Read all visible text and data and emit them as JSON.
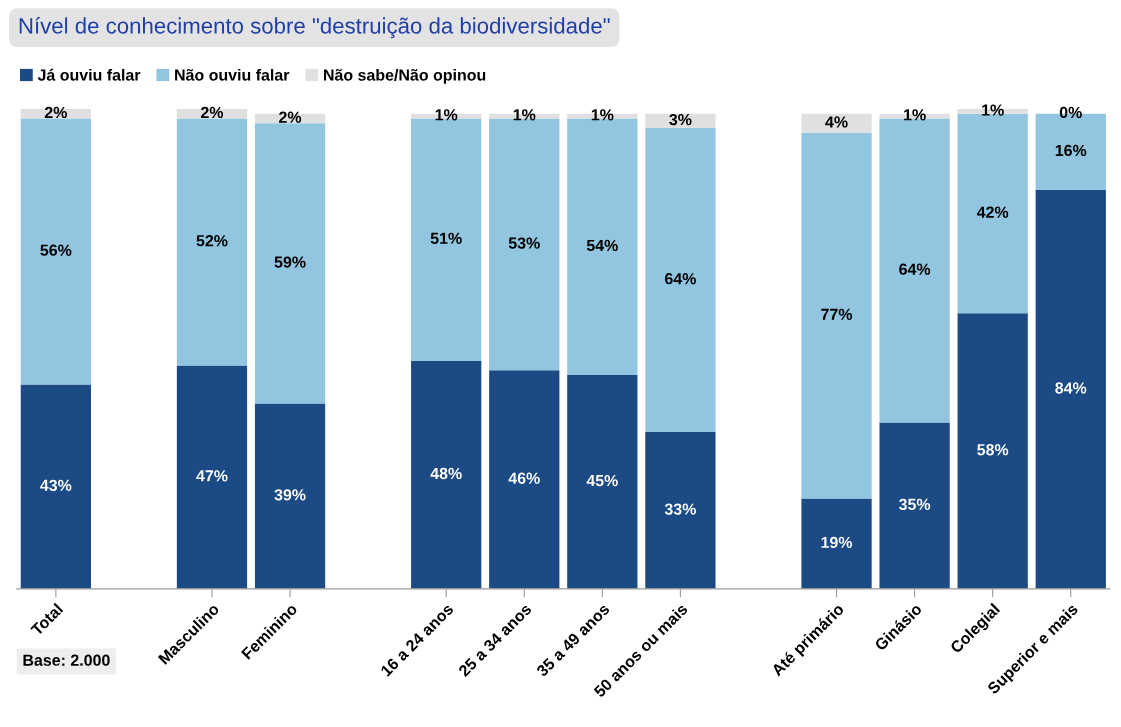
{
  "chart_data": {
    "type": "bar",
    "stacked": true,
    "title": "Nível de conhecimento sobre \"destruição da biodiversidade\"",
    "categories": [
      "Total",
      null,
      "Masculino",
      "Feminino",
      null,
      "16 a 24 anos",
      "25 a 34 anos",
      "35 a 49 anos",
      "50 anos ou mais",
      null,
      "Até primário",
      "Ginásio",
      "Colegial",
      "Superior e mais"
    ],
    "series": [
      {
        "name": "Já ouviu falar",
        "color": "#1b4a85",
        "values": [
          43,
          null,
          47,
          39,
          null,
          48,
          46,
          45,
          33,
          null,
          19,
          35,
          58,
          84
        ],
        "value_labels": [
          "43%",
          null,
          "47%",
          "39%",
          null,
          "48%",
          "46%",
          "45%",
          "33%",
          null,
          "19%",
          "35%",
          "58%",
          "84%"
        ]
      },
      {
        "name": "Não ouviu falar",
        "color": "#92c5df",
        "values": [
          56,
          null,
          52,
          59,
          null,
          51,
          53,
          54,
          64,
          null,
          77,
          64,
          42,
          16
        ],
        "value_labels": [
          "56%",
          null,
          "52%",
          "59%",
          null,
          "51%",
          "53%",
          "54%",
          "64%",
          null,
          "77%",
          "64%",
          "42%",
          "16%"
        ]
      },
      {
        "name": "Não sabe/Não opinou",
        "color": "#e0e0e0",
        "values": [
          2,
          null,
          2,
          2,
          null,
          1,
          1,
          1,
          3,
          null,
          4,
          1,
          1,
          0
        ],
        "value_labels": [
          "2%",
          null,
          "2%",
          "2%",
          null,
          "1%",
          "1%",
          "1%",
          "3%",
          null,
          "4%",
          "1%",
          "1%",
          "0%"
        ]
      }
    ],
    "legend": "top left",
    "grid": false,
    "tick_labels": "x",
    "annotations": [
      "Base: 2.000"
    ]
  }
}
